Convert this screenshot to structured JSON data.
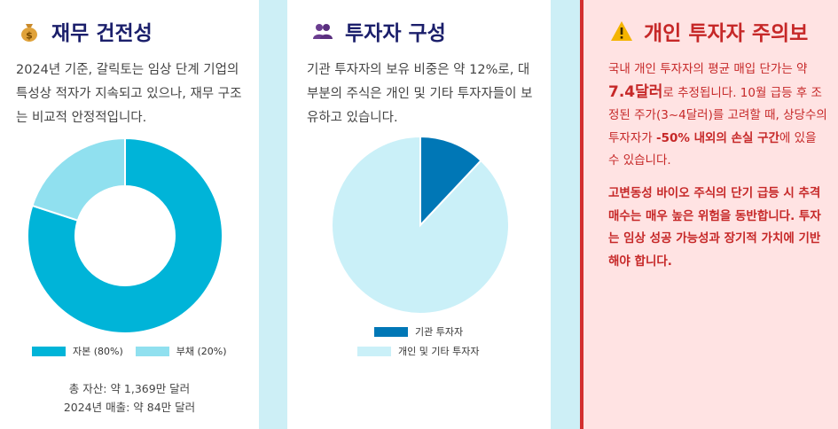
{
  "card1": {
    "title": "재무 건전성",
    "icon": "money-bag-icon",
    "description": "2024년 기준, 갈릭토는 임상 단계 기업의 특성상 적자가 지속되고 있으나, 재무 구조는 비교적 안정적입니다.",
    "legend": [
      "자본 (80%)",
      "부채 (20%)"
    ],
    "footer_line1": "총 자산: 약 1,369만 달러",
    "footer_line2": "2024년 매출: 약 84만 달러"
  },
  "card2": {
    "title": "투자자 구성",
    "icon": "people-icon",
    "description": "기관 투자자의 보유 비중은 약 12%로, 대부분의 주식은 개인 및 기타 투자자들이 보유하고 있습니다.",
    "legend": [
      "기관 투자자",
      "개인 및 기타 투자자"
    ]
  },
  "card3": {
    "title": "개인 투자자 주의보",
    "icon": "warning-icon",
    "p1_a": "국내 개인 투자자의 평균 매입 단가는 약 ",
    "p1_price": "7.4달러",
    "p1_b": "로 추정됩니다. 10월 급등 후 조정된 주가(3~4달러)를 고려할 때, 상당수의 투자자가 ",
    "p1_loss": "-50% 내외의 손실 구간",
    "p1_c": "에 있을 수 있습니다.",
    "p2": "고변동성 바이오 주식의 단기 급등 시 추격 매수는 매우 높은 위험을 동반합니다. 투자는 임상 성공 가능성과 장기적 가치에 기반해야 합니다."
  },
  "colors": {
    "equity": "#00b4d8",
    "debt": "#90e0ef",
    "institutional": "#0077b6",
    "retail": "#caf0f8",
    "warning": "#c62828"
  },
  "chart_data": [
    {
      "type": "pie",
      "variant": "donut",
      "categories": [
        "자본",
        "부채"
      ],
      "values": [
        80,
        20
      ],
      "legend": [
        "자본 (80%)",
        "부채 (20%)"
      ],
      "legend_position": "bottom"
    },
    {
      "type": "pie",
      "categories": [
        "기관 투자자",
        "개인 및 기타 투자자"
      ],
      "values": [
        12,
        88
      ],
      "legend": [
        "기관 투자자",
        "개인 및 기타 투자자"
      ],
      "legend_position": "bottom"
    }
  ]
}
